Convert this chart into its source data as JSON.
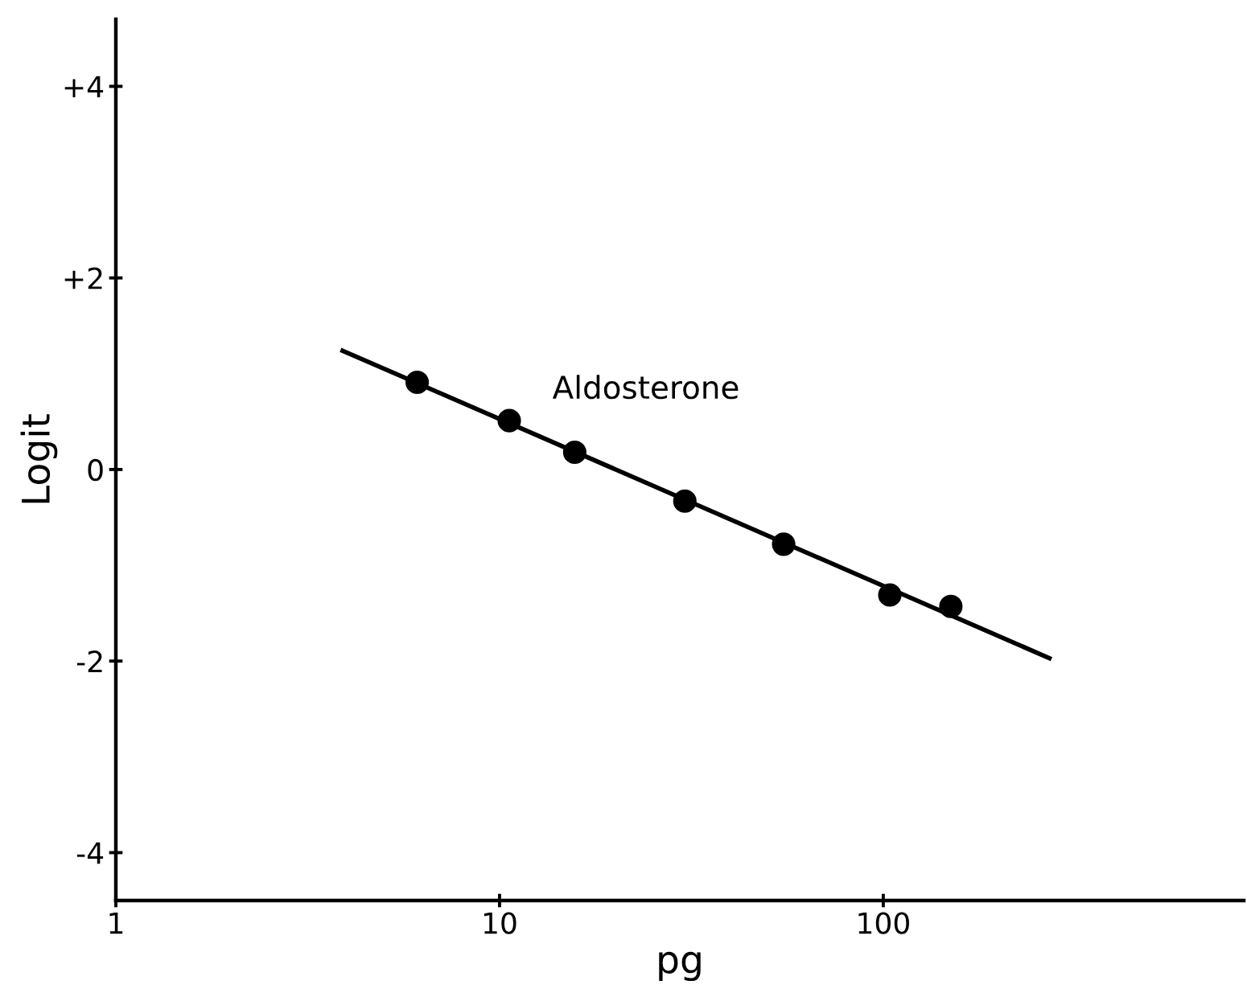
{
  "chart_data": {
    "type": "scatter",
    "xlabel": "pg",
    "ylabel": "Logit",
    "log": "x",
    "xlim": [
      1,
      870
    ],
    "xticks": [
      1,
      10,
      100
    ],
    "ylim": [
      -4.5,
      4.7
    ],
    "yticks": [
      {
        "value": 4,
        "label": "+4"
      },
      {
        "value": 2,
        "label": "+2"
      },
      0,
      -2,
      -4
    ],
    "grid": false,
    "series": [
      {
        "name": "Aldosterone",
        "color": "#000000",
        "marker": "circle",
        "x": [
          6.1,
          10.6,
          15.7,
          30.4,
          55,
          104,
          150
        ],
        "values": [
          0.91,
          0.51,
          0.18,
          -0.33,
          -0.78,
          -1.31,
          -1.43
        ]
      },
      {
        "type": "line",
        "color": "#000000",
        "marker": "none",
        "line_style": "solid",
        "x": [
          3.9,
          271
        ],
        "values": [
          1.24,
          -1.97
        ]
      }
    ]
  }
}
